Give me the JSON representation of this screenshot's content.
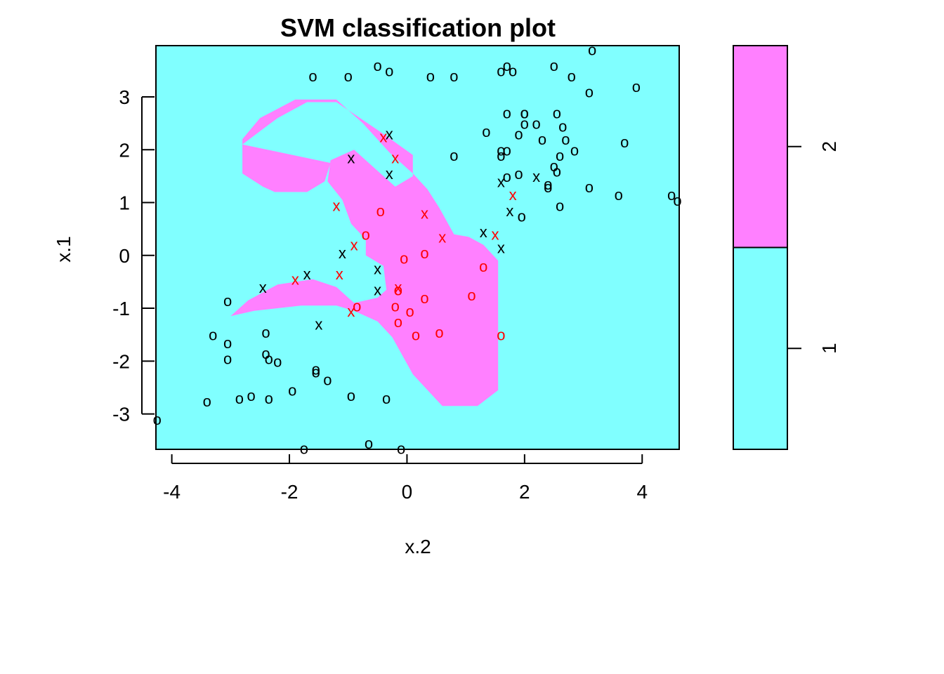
{
  "chart_data": {
    "type": "scatter",
    "title": "SVM classification plot",
    "xlabel": "x.2",
    "ylabel": "x.1",
    "xlim": [
      -4.27,
      4.63
    ],
    "ylim": [
      -3.67,
      3.97
    ],
    "x_ticks": [
      "-4",
      "-2",
      "0",
      "2",
      "4"
    ],
    "y_ticks": [
      "-3",
      "-2",
      "-1",
      "0",
      "1",
      "2",
      "3"
    ],
    "colors": {
      "class_1": "#80FFFF",
      "class_2": "#FF80FF",
      "class_1_points": "#000000",
      "class_2_points": "#FF0000"
    },
    "legend": {
      "placement": "right",
      "classes": [
        "1",
        "2"
      ],
      "split": 0.5
    },
    "regions": [
      {
        "class": "2",
        "polygon": [
          [
            -2.8,
            2.1
          ],
          [
            -2.2,
            2.6
          ],
          [
            -1.7,
            2.9
          ],
          [
            -1.2,
            2.9
          ],
          [
            -0.8,
            2.6
          ],
          [
            -0.4,
            2.3
          ],
          [
            0.1,
            1.9
          ],
          [
            0.1,
            1.5
          ],
          [
            -0.2,
            1.3
          ],
          [
            -0.5,
            1.6
          ],
          [
            -0.9,
            2.0
          ],
          [
            -1.3,
            1.8
          ],
          [
            -1.35,
            1.4
          ],
          [
            -1.1,
            1.05
          ],
          [
            -0.95,
            0.6
          ],
          [
            -0.7,
            0.3
          ],
          [
            -0.7,
            0.0
          ],
          [
            -0.4,
            -0.2
          ],
          [
            -0.35,
            -0.65
          ],
          [
            -0.5,
            -0.8
          ],
          [
            -0.9,
            -0.9
          ],
          [
            -1.2,
            -0.6
          ],
          [
            -1.6,
            -0.45
          ],
          [
            -2.2,
            -0.55
          ],
          [
            -2.7,
            -0.85
          ],
          [
            -3.0,
            -1.15
          ],
          [
            -2.6,
            -1.05
          ],
          [
            -1.8,
            -0.95
          ],
          [
            -1.2,
            -0.95
          ],
          [
            -0.9,
            -1.05
          ],
          [
            -0.5,
            -1.25
          ],
          [
            -0.25,
            -1.55
          ],
          [
            0.1,
            -2.25
          ],
          [
            0.6,
            -2.85
          ],
          [
            1.2,
            -2.85
          ],
          [
            1.55,
            -2.55
          ],
          [
            1.55,
            -0.1
          ],
          [
            1.3,
            0.2
          ],
          [
            1.05,
            0.35
          ],
          [
            0.8,
            0.4
          ],
          [
            0.55,
            0.9
          ],
          [
            0.35,
            1.25
          ],
          [
            0.1,
            1.55
          ],
          [
            -0.3,
            1.95
          ],
          [
            -0.75,
            2.5
          ],
          [
            -1.2,
            2.95
          ],
          [
            -1.9,
            2.95
          ],
          [
            -2.5,
            2.6
          ],
          [
            -2.8,
            2.2
          ],
          [
            -2.8,
            1.55
          ],
          [
            -2.45,
            1.3
          ],
          [
            -2.25,
            1.2
          ],
          [
            -1.7,
            1.2
          ],
          [
            -1.4,
            1.4
          ],
          [
            -1.3,
            1.75
          ]
        ],
        "note": ""
      }
    ],
    "points_class_1_o": [
      [
        -1.6,
        3.4
      ],
      [
        -1.0,
        3.4
      ],
      [
        -0.5,
        3.6
      ],
      [
        -0.3,
        3.5
      ],
      [
        0.4,
        3.4
      ],
      [
        1.7,
        3.6
      ],
      [
        2.5,
        3.6
      ],
      [
        2.8,
        3.4
      ],
      [
        3.1,
        3.1
      ],
      [
        3.9,
        3.2
      ],
      [
        0.8,
        3.4
      ],
      [
        1.6,
        3.5
      ],
      [
        1.8,
        3.5
      ],
      [
        2.0,
        2.7
      ],
      [
        2.7,
        2.2
      ],
      [
        1.7,
        2.7
      ],
      [
        2.0,
        2.7
      ],
      [
        2.2,
        2.5
      ],
      [
        2.3,
        2.2
      ],
      [
        2.0,
        2.5
      ],
      [
        1.9,
        2.3
      ],
      [
        1.6,
        2.0
      ],
      [
        1.6,
        1.9
      ],
      [
        1.7,
        2.0
      ],
      [
        0.8,
        1.9
      ],
      [
        1.9,
        1.55
      ],
      [
        1.7,
        1.5
      ],
      [
        2.5,
        1.7
      ],
      [
        2.55,
        1.6
      ],
      [
        2.6,
        1.9
      ],
      [
        2.85,
        2.0
      ],
      [
        2.4,
        1.35
      ],
      [
        2.4,
        1.3
      ],
      [
        3.1,
        1.3
      ],
      [
        3.6,
        1.15
      ],
      [
        4.5,
        1.15
      ],
      [
        4.6,
        1.05
      ],
      [
        1.95,
        0.75
      ],
      [
        2.6,
        0.95
      ],
      [
        3.7,
        2.15
      ],
      [
        1.35,
        2.35
      ],
      [
        2.55,
        2.7
      ],
      [
        2.65,
        2.45
      ],
      [
        3.15,
        3.9
      ],
      [
        -3.05,
        -0.85
      ],
      [
        -3.3,
        -1.5
      ],
      [
        -3.05,
        -1.65
      ],
      [
        -2.4,
        -1.45
      ],
      [
        -2.4,
        -1.85
      ],
      [
        -2.35,
        -1.95
      ],
      [
        -2.2,
        -2.0
      ],
      [
        -3.05,
        -1.95
      ],
      [
        -1.55,
        -2.15
      ],
      [
        -1.55,
        -2.2
      ],
      [
        -1.35,
        -2.35
      ],
      [
        -1.95,
        -2.55
      ],
      [
        -2.35,
        -2.7
      ],
      [
        -2.65,
        -2.65
      ],
      [
        -2.85,
        -2.7
      ],
      [
        -3.4,
        -2.75
      ],
      [
        -0.95,
        -2.65
      ],
      [
        -0.35,
        -2.7
      ],
      [
        -4.25,
        -3.1
      ],
      [
        -0.65,
        -3.55
      ],
      [
        -0.1,
        -3.65
      ],
      [
        -1.75,
        -3.65
      ]
    ],
    "points_class_1_x": [
      [
        -0.95,
        1.85
      ],
      [
        -0.3,
        2.3
      ],
      [
        -0.3,
        1.55
      ],
      [
        -1.7,
        -0.35
      ],
      [
        -2.45,
        -0.6
      ],
      [
        -1.5,
        -1.3
      ],
      [
        -1.1,
        0.05
      ],
      [
        -0.5,
        -0.25
      ],
      [
        -0.5,
        -0.65
      ],
      [
        1.3,
        0.45
      ],
      [
        1.6,
        0.15
      ],
      [
        1.6,
        1.4
      ],
      [
        1.75,
        0.85
      ],
      [
        2.2,
        1.5
      ]
    ],
    "points_class_2_o": [
      [
        -0.45,
        0.85
      ],
      [
        -0.7,
        0.4
      ],
      [
        -0.05,
        -0.05
      ],
      [
        0.3,
        0.05
      ],
      [
        1.3,
        -0.2
      ],
      [
        -0.15,
        -0.65
      ],
      [
        -0.2,
        -0.95
      ],
      [
        0.05,
        -1.05
      ],
      [
        -0.15,
        -1.25
      ],
      [
        0.3,
        -0.8
      ],
      [
        1.1,
        -0.75
      ],
      [
        -0.85,
        -0.95
      ],
      [
        0.15,
        -1.5
      ],
      [
        0.55,
        -1.45
      ],
      [
        1.6,
        -1.5
      ],
      [
        -0.15,
        -0.65
      ]
    ],
    "points_class_2_x": [
      [
        -0.4,
        2.25
      ],
      [
        -0.2,
        1.85
      ],
      [
        -1.2,
        0.95
      ],
      [
        0.3,
        0.8
      ],
      [
        0.6,
        0.35
      ],
      [
        1.5,
        0.4
      ],
      [
        -0.9,
        0.2
      ],
      [
        -1.9,
        -0.45
      ],
      [
        -1.15,
        -0.35
      ],
      [
        -0.95,
        -1.05
      ],
      [
        -0.15,
        -0.6
      ],
      [
        1.8,
        1.15
      ]
    ]
  }
}
